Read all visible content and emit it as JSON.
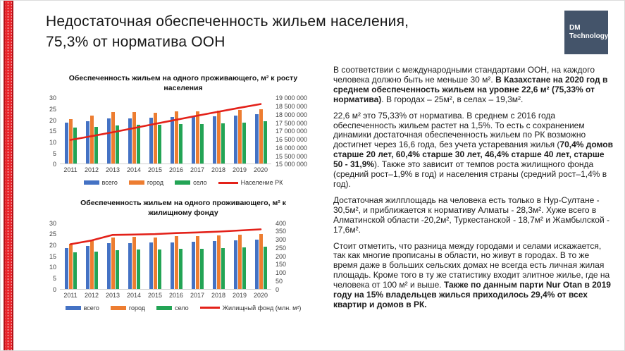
{
  "slide": {
    "title": "Недостаточная обеспеченность жильем населения,\n75,3% от норматива ООН"
  },
  "logo": {
    "line1": "DM",
    "line2": "Technology",
    "bg_color": "#44546A"
  },
  "accent": {
    "ribbon_color": "#E8242A"
  },
  "chart_data": [
    {
      "type": "bar",
      "title": "Обеспеченность жильем на одного проживающего, м² к росту населения",
      "categories": [
        "2011",
        "2012",
        "2013",
        "2014",
        "2015",
        "2016",
        "2017",
        "2018",
        "2019",
        "2020"
      ],
      "series": [
        {
          "name": "всего",
          "color": "#4472C4",
          "values": [
            18.7,
            19.6,
            20.9,
            20.9,
            21.0,
            21.3,
            21.5,
            21.8,
            22.1,
            22.6
          ]
        },
        {
          "name": "город",
          "color": "#ED7D31",
          "values": [
            20.5,
            22.1,
            23.5,
            23.6,
            23.4,
            23.9,
            24.0,
            24.3,
            24.6,
            25.0
          ]
        },
        {
          "name": "село",
          "color": "#23A455",
          "values": [
            16.7,
            16.9,
            17.5,
            17.9,
            17.8,
            18.1,
            18.2,
            18.6,
            18.8,
            19.3
          ]
        }
      ],
      "line": {
        "name": "Население РК",
        "color": "#E32119",
        "values": [
          16440000,
          16670000,
          16910000,
          17160000,
          17420000,
          17670000,
          17920000,
          18160000,
          18400000,
          18630000
        ],
        "axis_min": 15000000,
        "axis_max": 19000000
      },
      "left_axis": {
        "min": 0,
        "max": 30,
        "ticks": [
          "30",
          "25",
          "20",
          "15",
          "10",
          "5",
          "0"
        ]
      },
      "right_axis": {
        "ticks": [
          "19 000 000",
          "18 500 000",
          "18 000 000",
          "17 500 000",
          "17 000 000",
          "16 500 000",
          "16 000 000",
          "15 500 000",
          "15 000 000"
        ]
      },
      "grid": false,
      "legend_position": "bottom"
    },
    {
      "type": "bar",
      "title": "Обеспеченность жильем на одного проживающего, м² к жилищному фонду",
      "categories": [
        "2011",
        "2012",
        "2013",
        "2014",
        "2015",
        "2016",
        "2017",
        "2018",
        "2019",
        "2020"
      ],
      "series": [
        {
          "name": "всего",
          "color": "#4472C4",
          "values": [
            18.7,
            19.6,
            20.9,
            20.9,
            21.0,
            21.3,
            21.5,
            21.8,
            22.1,
            22.6
          ]
        },
        {
          "name": "город",
          "color": "#ED7D31",
          "values": [
            20.5,
            22.1,
            23.5,
            23.6,
            23.4,
            23.9,
            24.0,
            24.3,
            24.6,
            25.0
          ]
        },
        {
          "name": "село",
          "color": "#23A455",
          "values": [
            16.7,
            16.9,
            17.5,
            17.9,
            17.8,
            18.1,
            18.2,
            18.6,
            18.8,
            19.3
          ]
        }
      ],
      "line": {
        "name": "Жилищный фонд (млн. м²)",
        "color": "#E32119",
        "values": [
          273,
          296,
          330,
          332,
          335,
          341,
          345,
          350,
          357,
          364
        ],
        "axis_min": 0,
        "axis_max": 400
      },
      "left_axis": {
        "min": 0,
        "max": 30,
        "ticks": [
          "30",
          "25",
          "20",
          "15",
          "10",
          "5",
          "0"
        ]
      },
      "right_axis": {
        "ticks": [
          "400",
          "350",
          "300",
          "250",
          "200",
          "150",
          "100",
          "50",
          "0"
        ]
      },
      "grid": false,
      "legend_position": "bottom"
    }
  ],
  "text_column": {
    "paragraphs": [
      [
        {
          "t": "В соответствии с международными стандартами ООН, на каждого человека должно быть не меньше 30 м². ",
          "b": false
        },
        {
          "t": "В Казахстане на 2020 год в среднем обеспеченность жильем на уровне 22,6 м² (75,33% от норматива)",
          "b": true
        },
        {
          "t": ". В городах – 25м², в селах – 19,3м².",
          "b": false
        }
      ],
      [
        {
          "t": "22,6 м² это 75,33% от норматива. В среднем с 2016 года обеспеченность жильем растет на 1,5%. То есть с сохранением динамики достаточная обеспеченность жильем по РК возможно достигнет через 16,6 года, без учета устаревания жилья (",
          "b": false
        },
        {
          "t": "70,4% домов старше 20 лет, 60,4% старше 30 лет, 46,4% старше 40 лет, старше 50 - 31,9%",
          "b": true
        },
        {
          "t": "). Также это зависит от темпов роста жилищного фонда (средний рост–1,9% в год) и населения страны (средний рост–1,4% в год).",
          "b": false
        }
      ],
      [
        {
          "t": "Достаточная жилплощадь на человека есть только в Нур-Султане - 30,5м², и приближается к нормативу Алматы - 28,3м². Хуже всего в Алматинской области -20,2м², Туркестанской - 18,7м² и Жамбылской - 17,6м².",
          "b": false
        }
      ],
      [
        {
          "t": "Стоит отметить, что разница между городами и селами искажается, так как многие прописаны в области, но живут в городах. В то же время даже в больших сельских домах не всегда есть личная жилая площадь. Кроме того в ту же статистику входит элитное жилье, где на человека от 100 м² и выше. ",
          "b": false
        },
        {
          "t": "Также по данным парти Nur Otan в 2019 году на 15% владельцев жилься приходилось 29,4% от всех квартир и домов в РК.",
          "b": true
        }
      ]
    ]
  }
}
